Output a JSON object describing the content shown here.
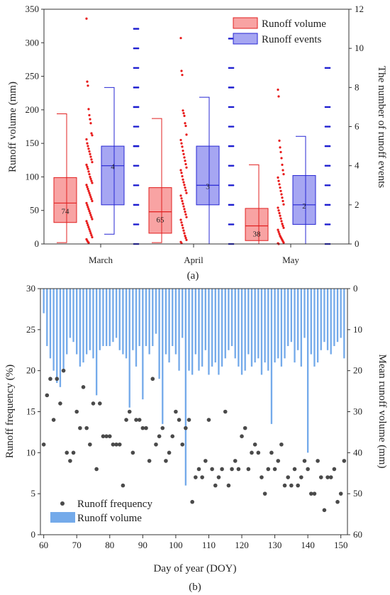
{
  "chart_data": [
    {
      "type": "box",
      "panel_label": "(a)",
      "categories": [
        "March",
        "April",
        "May"
      ],
      "ylabel": "Runoff volume (mm)",
      "y2label": "The number of runoff events",
      "ylim": [
        0,
        350
      ],
      "yticks": [
        0,
        50,
        100,
        150,
        200,
        250,
        300,
        350
      ],
      "y2lim": [
        0,
        12
      ],
      "y2ticks": [
        0,
        2,
        4,
        6,
        8,
        10,
        12
      ],
      "legend": {
        "position": "top-right",
        "labels": [
          "Runoff volume",
          "Runoff events"
        ]
      },
      "colors": {
        "volume_fill": "#f8a3a3",
        "volume_stroke": "#e12020",
        "volume_points": "#e81818",
        "events_fill": "#a6a6f2",
        "events_stroke": "#2727d3",
        "events_points": "#1c1ccf"
      },
      "series": [
        {
          "name": "Runoff volume",
          "axis": "left",
          "boxes": [
            {
              "category": "March",
              "q1": 32,
              "median": 61,
              "q3": 99,
              "whisker_low": 2,
              "whisker_high": 194,
              "mean_label": "74"
            },
            {
              "category": "April",
              "q1": 16,
              "median": 48,
              "q3": 84,
              "whisker_low": 2,
              "whisker_high": 187,
              "mean_label": "65"
            },
            {
              "category": "May",
              "q1": 5,
              "median": 27,
              "q3": 53,
              "whisker_low": 0,
              "whisker_high": 118,
              "mean_label": "38"
            }
          ],
          "points": {
            "March": [
              336,
              242,
              236,
              201,
              192,
              186,
              180,
              165,
              162,
              156,
              150,
              146,
              142,
              138,
              134,
              130,
              126,
              122,
              118,
              115,
              112,
              108,
              104,
              100,
              97,
              94,
              91,
              88,
              85,
              82,
              79,
              76,
              73,
              70,
              67,
              64,
              61,
              58,
              55,
              52,
              49,
              46,
              43,
              40,
              37,
              34,
              31,
              28,
              25,
              22,
              19,
              16,
              13,
              10,
              7,
              5,
              3,
              2
            ],
            "April": [
              307,
              258,
              252,
              199,
              195,
              191,
              180,
              176,
              163,
              155,
              150,
              145,
              139,
              134,
              129,
              124,
              119,
              114,
              110,
              106,
              101,
              96,
              92,
              88,
              84,
              80,
              76,
              72,
              68,
              64,
              60,
              56,
              52,
              48,
              44,
              40,
              36,
              32,
              28,
              24,
              20,
              16,
              12,
              9,
              6,
              3,
              1
            ],
            "May": [
              230,
              220,
              154,
              144,
              137,
              128,
              118,
              110,
              104,
              99,
              94,
              89,
              84,
              79,
              74,
              69,
              64,
              59,
              54,
              50,
              46,
              42,
              38,
              34,
              30,
              27,
              24,
              21,
              18,
              15,
              12,
              10,
              8,
              6,
              4,
              2,
              1,
              0
            ]
          }
        },
        {
          "name": "Runoff events",
          "axis": "right",
          "boxes": [
            {
              "category": "March",
              "q1": 2,
              "median": 4,
              "q3": 5,
              "whisker_low": 0.5,
              "whisker_high": 8,
              "mean_label": "4"
            },
            {
              "category": "April",
              "q1": 2,
              "median": 3,
              "q3": 5,
              "whisker_low": 0,
              "whisker_high": 7.5,
              "mean_label": "3"
            },
            {
              "category": "May",
              "q1": 1,
              "median": 2,
              "q3": 3.5,
              "whisker_low": 0,
              "whisker_high": 5.5,
              "mean_label": "2"
            }
          ],
          "points": {
            "March": [
              11,
              10,
              9,
              8,
              7,
              7,
              6,
              5,
              5,
              4,
              3,
              2,
              1,
              0
            ],
            "April": [
              10.5,
              9,
              8,
              7,
              6,
              5,
              4,
              3,
              2,
              1,
              0
            ],
            "May": [
              9,
              7,
              6,
              5,
              4,
              3,
              2,
              1,
              0
            ]
          }
        }
      ]
    },
    {
      "type": "scatter+bar",
      "panel_label": "(b)",
      "xlabel": "Day of year (DOY)",
      "ylabel": "Runoff frequency (%)",
      "y2label": "Mean runoff volume (mm)",
      "xlim": [
        59,
        152
      ],
      "xticks": [
        60,
        70,
        80,
        90,
        100,
        110,
        120,
        130,
        140,
        150
      ],
      "ylim": [
        0,
        30
      ],
      "yticks": [
        0,
        5,
        10,
        15,
        20,
        25,
        30
      ],
      "y2lim": [
        0,
        60
      ],
      "y2ticks": [
        0,
        10,
        20,
        30,
        40,
        50,
        60
      ],
      "y2_inverted": true,
      "legend": {
        "position": "bottom-left",
        "labels": [
          "Runoff frequency",
          "Runoff volume"
        ]
      },
      "colors": {
        "points": "#4a4a4a",
        "bars": "#74aaea"
      },
      "series": [
        {
          "name": "Runoff frequency",
          "type": "scatter",
          "x": [
            60,
            61,
            62,
            63,
            64,
            65,
            66,
            67,
            68,
            69,
            70,
            71,
            72,
            73,
            74,
            75,
            76,
            77,
            78,
            79,
            80,
            81,
            82,
            83,
            84,
            85,
            86,
            87,
            88,
            89,
            90,
            91,
            92,
            93,
            94,
            95,
            96,
            97,
            98,
            99,
            100,
            101,
            102,
            103,
            104,
            105,
            106,
            107,
            108,
            109,
            110,
            111,
            112,
            113,
            114,
            115,
            116,
            117,
            118,
            119,
            120,
            121,
            122,
            123,
            124,
            125,
            126,
            127,
            128,
            129,
            130,
            131,
            132,
            133,
            134,
            135,
            136,
            137,
            138,
            139,
            140,
            141,
            142,
            143,
            144,
            145,
            146,
            147,
            148,
            149,
            150,
            151
          ],
          "values": [
            11,
            17,
            19,
            14,
            19,
            16,
            20,
            10,
            9,
            10,
            15,
            13,
            18,
            13,
            11,
            16,
            8,
            16,
            12,
            12,
            12,
            11,
            11,
            11,
            6,
            14,
            15,
            10,
            14,
            14,
            13,
            13,
            9,
            19,
            11,
            12,
            13,
            9,
            10,
            12,
            15,
            14,
            11,
            13,
            14,
            4,
            7,
            8,
            7,
            9,
            14,
            8,
            6,
            7,
            8,
            15,
            6,
            8,
            9,
            8,
            12,
            13,
            8,
            10,
            11,
            10,
            7,
            5,
            8,
            10,
            8,
            9,
            11,
            6,
            7,
            6,
            8,
            6,
            7,
            9,
            8,
            5,
            5,
            9,
            7,
            3,
            7,
            7,
            8,
            4,
            5,
            9
          ]
        },
        {
          "name": "Runoff volume",
          "type": "bar",
          "axis": "right",
          "x": [
            60,
            61,
            62,
            63,
            64,
            65,
            66,
            67,
            68,
            69,
            70,
            71,
            72,
            73,
            74,
            75,
            76,
            77,
            78,
            79,
            80,
            81,
            82,
            83,
            84,
            85,
            86,
            87,
            88,
            89,
            90,
            91,
            92,
            93,
            94,
            95,
            96,
            97,
            98,
            99,
            100,
            101,
            102,
            103,
            104,
            105,
            106,
            107,
            108,
            109,
            110,
            111,
            112,
            113,
            114,
            115,
            116,
            117,
            118,
            119,
            120,
            121,
            122,
            123,
            124,
            125,
            126,
            127,
            128,
            129,
            130,
            131,
            132,
            133,
            134,
            135,
            136,
            137,
            138,
            139,
            140,
            141,
            142,
            143,
            144,
            145,
            146,
            147,
            148,
            149,
            150,
            151
          ],
          "values": [
            6,
            14,
            17,
            20,
            23,
            24,
            20,
            16,
            12,
            13,
            16,
            19,
            18,
            16,
            15,
            17,
            26,
            15,
            14,
            14,
            14,
            13,
            12,
            15,
            16,
            17,
            29,
            15,
            19,
            14,
            27,
            14,
            16,
            14,
            11,
            22,
            33,
            16,
            18,
            14,
            16,
            20,
            12,
            48,
            20,
            21,
            16,
            20,
            19,
            15,
            21,
            19,
            18,
            21,
            19,
            17,
            15,
            14,
            17,
            19,
            21,
            20,
            16,
            19,
            18,
            17,
            21,
            18,
            20,
            33,
            18,
            17,
            19,
            17,
            14,
            13,
            18,
            15,
            19,
            12,
            40,
            16,
            19,
            18,
            15,
            13,
            15,
            16,
            14,
            13,
            12,
            17
          ]
        }
      ]
    }
  ]
}
